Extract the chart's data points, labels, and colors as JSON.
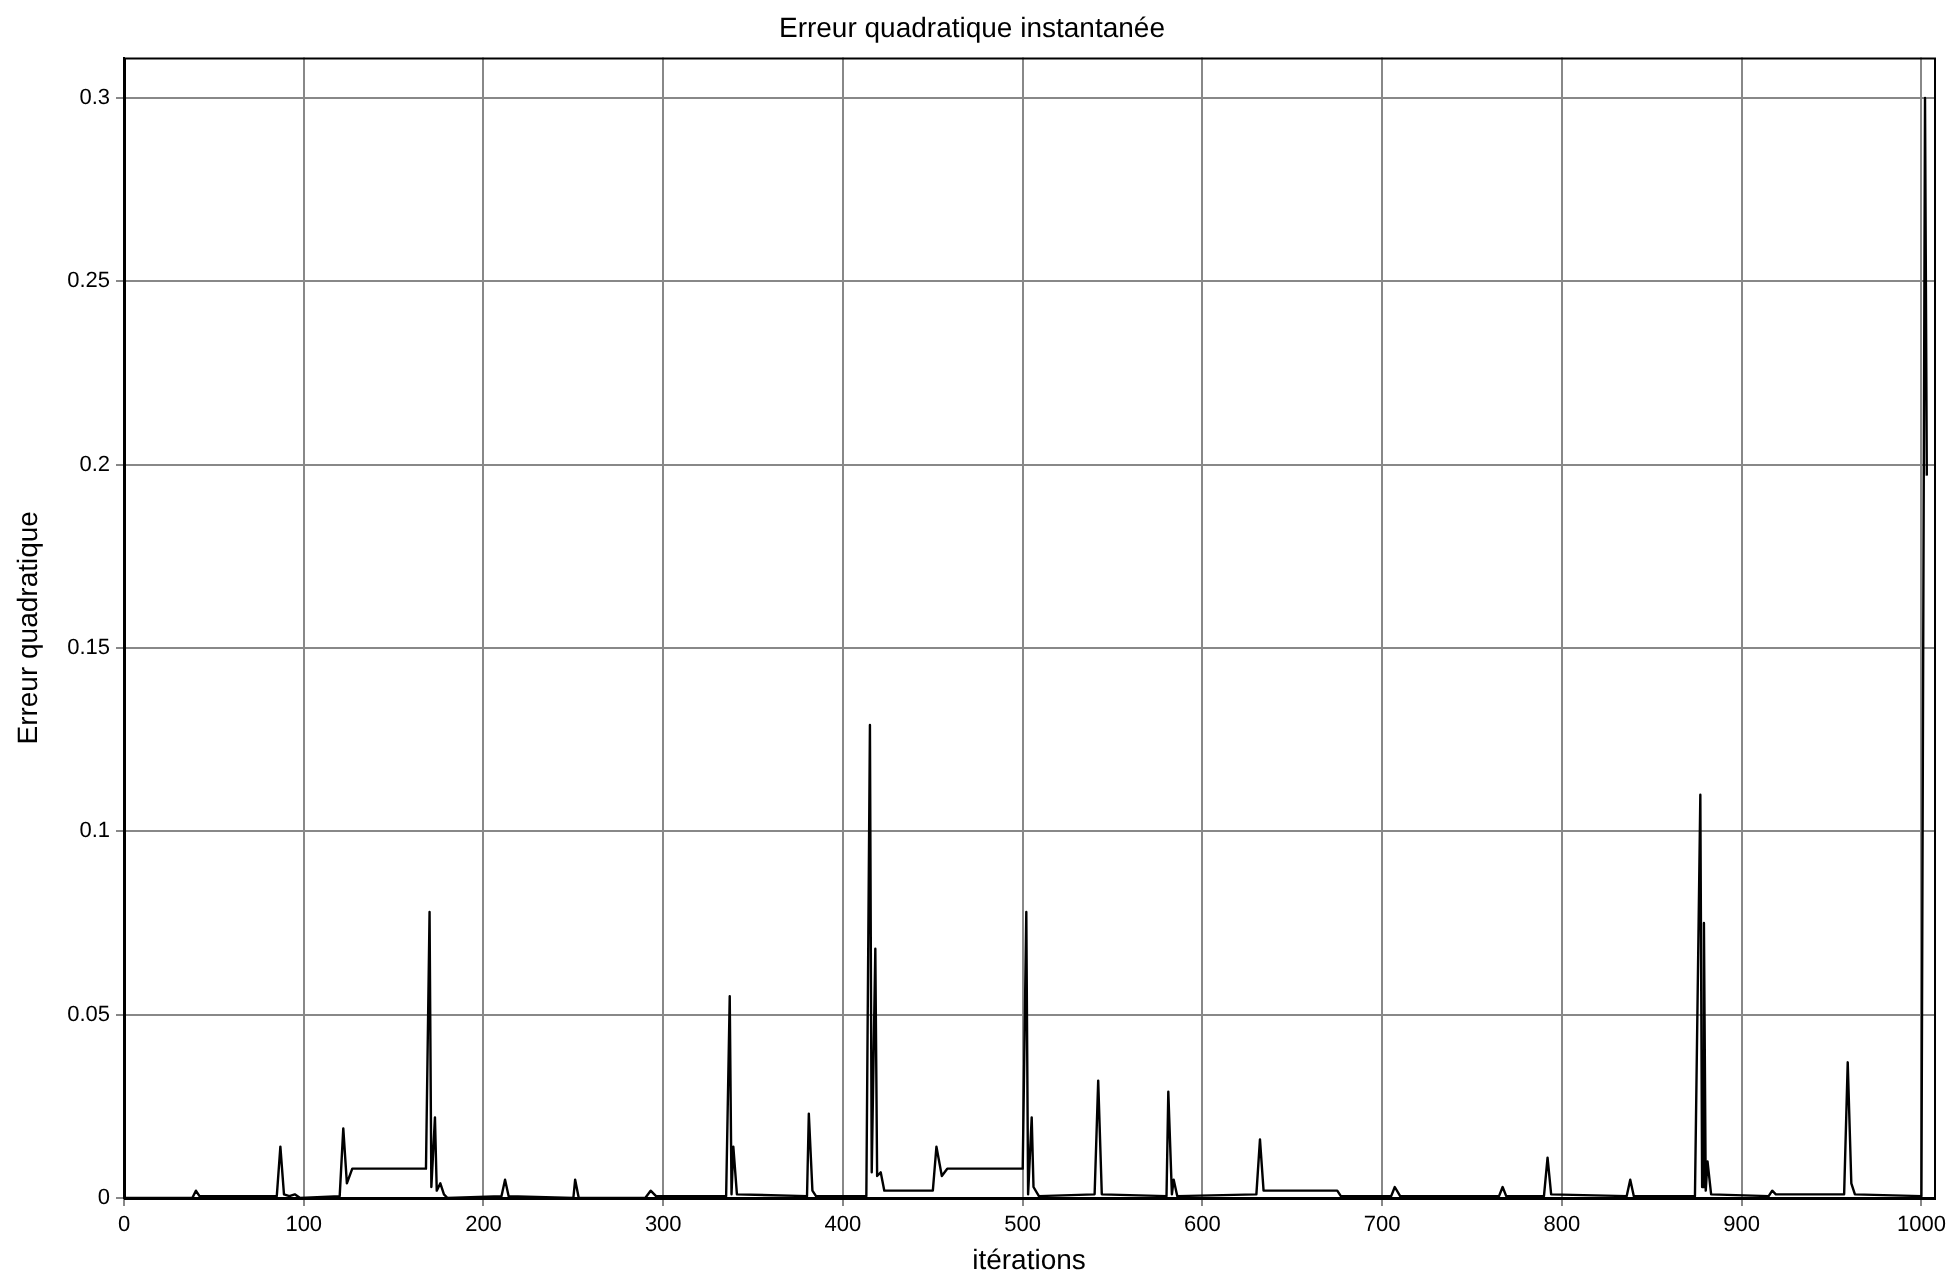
{
  "chart_data": {
    "type": "line",
    "title": "Erreur quadratique instantanée",
    "xlabel": "itérations",
    "ylabel": "Erreur quadratique",
    "x": [
      0,
      38,
      40,
      42,
      85,
      87,
      89,
      92,
      95,
      98,
      120,
      122,
      124,
      127,
      168,
      170,
      171,
      173,
      174,
      176,
      178,
      180,
      210,
      212,
      214,
      250,
      251,
      253,
      290,
      293,
      296,
      335,
      337,
      338,
      339,
      341,
      380,
      381,
      383,
      385,
      413,
      415,
      416,
      418,
      419,
      421,
      423,
      450,
      452,
      455,
      458,
      500,
      502,
      503,
      505,
      506,
      509,
      540,
      542,
      544,
      580,
      581,
      583,
      584,
      586,
      630,
      632,
      634,
      637,
      675,
      677,
      705,
      707,
      710,
      765,
      767,
      769,
      790,
      792,
      794,
      836,
      838,
      840,
      874,
      877,
      878,
      879,
      880,
      881,
      883,
      915,
      917,
      919,
      957,
      959,
      961,
      963,
      1000,
      1002,
      1003
    ],
    "series": [
      {
        "color": "#000000",
        "values": [
          0,
          0,
          0.002,
          0.0005,
          0.0005,
          0.014,
          0.001,
          0.0005,
          0.001,
          0,
          0.0005,
          0.019,
          0.004,
          0.008,
          0.008,
          0.078,
          0.003,
          0.022,
          0.002,
          0.004,
          0.001,
          0,
          0.0005,
          0.005,
          0.0005,
          0,
          0.005,
          0,
          0,
          0.002,
          0.0005,
          0.0005,
          0.055,
          0.001,
          0.014,
          0.001,
          0.0005,
          0.023,
          0.002,
          0.0005,
          0.0005,
          0.129,
          0.007,
          0.068,
          0.006,
          0.007,
          0.002,
          0.002,
          0.014,
          0.006,
          0.008,
          0.008,
          0.078,
          0.001,
          0.022,
          0.003,
          0.0005,
          0.001,
          0.032,
          0.001,
          0.0005,
          0.029,
          0.001,
          0.005,
          0.0005,
          0.001,
          0.016,
          0.002,
          0.002,
          0.002,
          0.0005,
          0.0005,
          0.003,
          0.0005,
          0.0005,
          0.003,
          0.0005,
          0.0005,
          0.011,
          0.001,
          0.0005,
          0.005,
          0.0005,
          0.0005,
          0.11,
          0.003,
          0.075,
          0.002,
          0.01,
          0.001,
          0.0005,
          0.002,
          0.001,
          0.001,
          0.037,
          0.004,
          0.001,
          0.0005,
          0.3,
          0.197
        ]
      }
    ],
    "xlim": [
      0,
      1007
    ],
    "xticks": [
      0,
      100,
      200,
      300,
      400,
      500,
      600,
      700,
      800,
      900,
      1000
    ],
    "ylim": [
      0,
      0.311
    ],
    "yticks": [
      0,
      0.05,
      0.1,
      0.15,
      0.2,
      0.25,
      0.3
    ],
    "grid": true,
    "legend": false,
    "marker": "none",
    "line_style": "solid"
  }
}
